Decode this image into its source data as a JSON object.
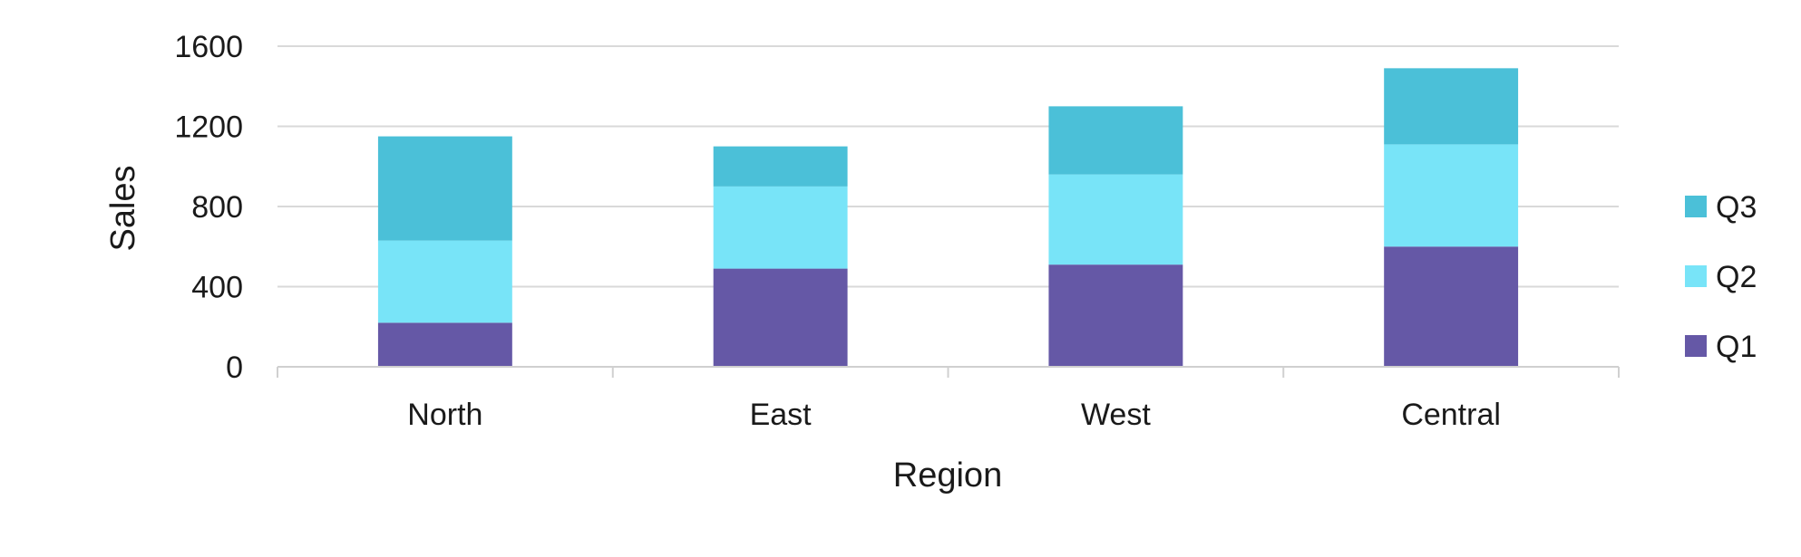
{
  "chart_data": {
    "type": "bar",
    "stacked": true,
    "title": "",
    "xlabel": "Region",
    "ylabel": "Sales",
    "categories": [
      "North",
      "East",
      "West",
      "Central"
    ],
    "series": [
      {
        "name": "Q1",
        "values": [
          220,
          490,
          510,
          600
        ],
        "color": "#6558a6"
      },
      {
        "name": "Q2",
        "values": [
          410,
          410,
          450,
          510
        ],
        "color": "#78e4f8"
      },
      {
        "name": "Q3",
        "values": [
          520,
          200,
          340,
          380
        ],
        "color": "#4bc0d8"
      }
    ],
    "ylim": [
      0,
      1600
    ],
    "yticks": [
      "0",
      "400",
      "800",
      "1200",
      "1600"
    ],
    "grid": true,
    "legend_position": "right",
    "legend_order": [
      "Q3",
      "Q2",
      "Q1"
    ]
  }
}
